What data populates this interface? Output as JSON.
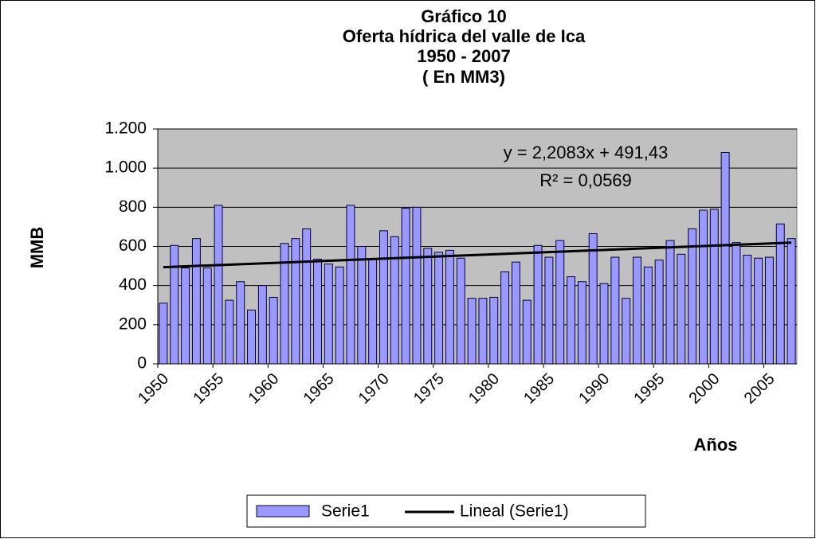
{
  "chart_data": {
    "type": "bar",
    "title": [
      "Gráfico 10",
      "Oferta hídrica del valle de Ica",
      "1950 - 2007",
      "( En MM3)"
    ],
    "y_label": "MMB",
    "x_label": "Años",
    "categories": [
      "1950",
      null,
      null,
      null,
      null,
      "1955",
      null,
      null,
      null,
      null,
      "1960",
      null,
      null,
      null,
      null,
      "1965",
      null,
      null,
      null,
      null,
      "1970",
      null,
      null,
      null,
      null,
      "1975",
      null,
      null,
      null,
      null,
      "1980",
      null,
      null,
      null,
      null,
      "1985",
      null,
      null,
      null,
      null,
      "1990",
      null,
      null,
      null,
      null,
      "1995",
      null,
      null,
      null,
      null,
      "2000",
      null,
      null,
      null,
      null,
      "2005",
      null,
      null
    ],
    "series": [
      {
        "name": "Serie1",
        "color": "#9999ff",
        "values": [
          310,
          605,
          490,
          640,
          490,
          810,
          325,
          420,
          275,
          400,
          340,
          615,
          640,
          690,
          535,
          510,
          495,
          810,
          600,
          535,
          680,
          650,
          795,
          800,
          590,
          570,
          580,
          540,
          335,
          335,
          340,
          470,
          520,
          325,
          605,
          545,
          630,
          445,
          420,
          665,
          410,
          545,
          335,
          545,
          495,
          530,
          630,
          560,
          690,
          785,
          790,
          1080,
          620,
          555,
          540,
          545,
          715,
          640
        ]
      }
    ],
    "trendline": {
      "name": "Lineal (Serie1)",
      "color": "#000000",
      "slope": 2.2083,
      "intercept": 491.43,
      "equation": "y = 2,2083x + 491,43",
      "r_squared": "R² = 0,0569"
    },
    "ylim": [
      0,
      1200
    ],
    "yticks": [
      0,
      200,
      400,
      600,
      800,
      {
        "value": 1000,
        "label": "1.000"
      },
      {
        "value": 1200,
        "label": "1.200"
      }
    ],
    "grid": true,
    "legend": "bottom"
  }
}
